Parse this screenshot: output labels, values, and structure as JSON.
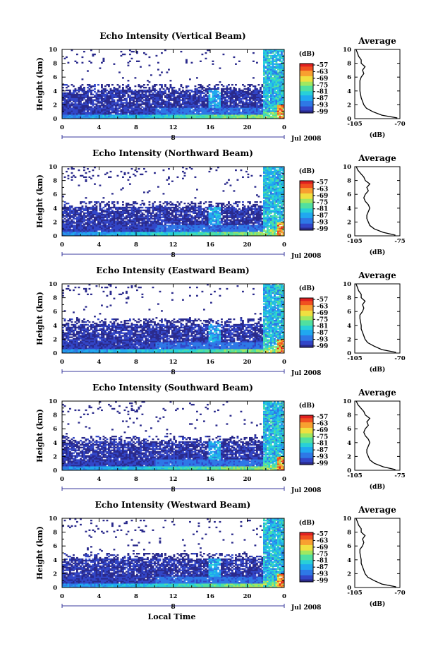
{
  "chart_data": [
    {
      "type": "heatmap",
      "title": "Echo Intensity (Vertical Beam)",
      "ylabel": "Height (km)",
      "xlabel": "",
      "x_ticks": [
        "0",
        "4",
        "8",
        "12",
        "16",
        "20",
        "0"
      ],
      "y_ticks": [
        "0",
        "2",
        "4",
        "6",
        "8",
        "10"
      ],
      "xlim": [
        0,
        24
      ],
      "ylim": [
        0,
        10
      ],
      "date_marker": "8",
      "month_label": "Jul 2008",
      "colorbar": {
        "unit": "(dB)",
        "ticks": [
          "-57",
          "-63",
          "-69",
          "-75",
          "-81",
          "-87",
          "-93",
          "-99"
        ]
      },
      "average_profile": {
        "title": "Average",
        "xlabel": "(dB)",
        "x_ticks": [
          "-105",
          "-70"
        ],
        "xlim": [
          -105,
          -70
        ],
        "height": [
          0.1,
          0.5,
          1,
          1.5,
          2,
          2.5,
          3,
          3.5,
          4,
          4.5,
          5,
          5.5,
          6,
          6.5,
          7,
          7.5,
          8,
          8.5,
          9,
          9.5,
          10
        ],
        "value": [
          -72,
          -84,
          -91,
          -96,
          -98,
          -99,
          -100,
          -100.5,
          -101,
          -101,
          -101,
          -101,
          -100,
          -98,
          -99,
          -97,
          -100,
          -100,
          -102,
          -103,
          -104
        ]
      }
    },
    {
      "type": "heatmap",
      "title": "Echo Intensity (Northward Beam)",
      "ylabel": "Height (km)",
      "xlabel": "",
      "x_ticks": [
        "0",
        "4",
        "8",
        "12",
        "16",
        "20",
        "0"
      ],
      "y_ticks": [
        "0",
        "2",
        "4",
        "6",
        "8",
        "10"
      ],
      "xlim": [
        0,
        24
      ],
      "ylim": [
        0,
        10
      ],
      "date_marker": "8",
      "month_label": "Jul 2008",
      "colorbar": {
        "unit": "(dB)",
        "ticks": [
          "-57",
          "-63",
          "-69",
          "-75",
          "-81",
          "-87",
          "-93",
          "-99"
        ]
      },
      "average_profile": {
        "title": "Average",
        "xlabel": "(dB)",
        "x_ticks": [
          "-105",
          "-75"
        ],
        "xlim": [
          -105,
          -75
        ],
        "height": [
          0.1,
          0.5,
          1,
          1.5,
          2,
          2.5,
          3,
          3.5,
          4,
          4.5,
          5,
          5.5,
          6,
          6.5,
          7,
          7.5,
          8,
          8.5,
          9,
          9.5,
          10
        ],
        "value": [
          -78,
          -86,
          -92,
          -95,
          -96,
          -97,
          -97,
          -96,
          -95,
          -96,
          -98,
          -99,
          -98,
          -96,
          -97,
          -95,
          -98,
          -99,
          -101,
          -103,
          -104
        ]
      }
    },
    {
      "type": "heatmap",
      "title": "Echo Intensity (Eastward Beam)",
      "ylabel": "Height (km)",
      "xlabel": "",
      "x_ticks": [
        "0",
        "4",
        "8",
        "12",
        "16",
        "20",
        "0"
      ],
      "y_ticks": [
        "0",
        "2",
        "4",
        "6",
        "8",
        "10"
      ],
      "xlim": [
        0,
        24
      ],
      "ylim": [
        0,
        10
      ],
      "date_marker": "8",
      "month_label": "Jul 2008",
      "colorbar": {
        "unit": "(dB)",
        "ticks": [
          "-57",
          "-63",
          "-69",
          "-75",
          "-81",
          "-87",
          "-93",
          "-99"
        ]
      },
      "average_profile": {
        "title": "Average",
        "xlabel": "(dB)",
        "x_ticks": [
          "-105",
          "-70"
        ],
        "xlim": [
          -105,
          -70
        ],
        "height": [
          0.1,
          0.5,
          1,
          1.5,
          2,
          2.5,
          3,
          3.5,
          4,
          4.5,
          5,
          5.5,
          6,
          6.5,
          7,
          7.5,
          8,
          8.5,
          9,
          9.5,
          10
        ],
        "value": [
          -73,
          -84,
          -90,
          -95,
          -97,
          -98,
          -99,
          -100,
          -100,
          -100.5,
          -101,
          -101,
          -99,
          -98,
          -99,
          -97,
          -100,
          -100,
          -102,
          -103,
          -104
        ]
      }
    },
    {
      "type": "heatmap",
      "title": "Echo Intensity (Southward Beam)",
      "ylabel": "Height (km)",
      "xlabel": "",
      "x_ticks": [
        "0",
        "4",
        "8",
        "12",
        "16",
        "20",
        "0"
      ],
      "y_ticks": [
        "0",
        "2",
        "4",
        "6",
        "8",
        "10"
      ],
      "xlim": [
        0,
        24
      ],
      "ylim": [
        0,
        10
      ],
      "date_marker": "8",
      "month_label": "Jul 2008",
      "colorbar": {
        "unit": "(dB)",
        "ticks": [
          "-57",
          "-63",
          "-69",
          "-75",
          "-81",
          "-87",
          "-93",
          "-99"
        ]
      },
      "average_profile": {
        "title": "Average",
        "xlabel": "(dB)",
        "x_ticks": [
          "-105",
          "-75"
        ],
        "xlim": [
          -105,
          -75
        ],
        "height": [
          0.1,
          0.5,
          1,
          1.5,
          2,
          2.5,
          3,
          3.5,
          4,
          4.5,
          5,
          5.5,
          6,
          6.5,
          7,
          7.5,
          8,
          8.5,
          9,
          9.5,
          10
        ],
        "value": [
          -78,
          -86,
          -92,
          -95,
          -96,
          -97,
          -97,
          -96,
          -95,
          -96,
          -98,
          -99,
          -98,
          -96,
          -97,
          -95,
          -98,
          -99,
          -101,
          -103,
          -104
        ]
      }
    },
    {
      "type": "heatmap",
      "title": "Echo Intensity (Westward Beam)",
      "ylabel": "Height (km)",
      "xlabel": "Local Time",
      "x_ticks": [
        "0",
        "4",
        "8",
        "12",
        "16",
        "20",
        "0"
      ],
      "y_ticks": [
        "0",
        "2",
        "4",
        "6",
        "8",
        "10"
      ],
      "xlim": [
        0,
        24
      ],
      "ylim": [
        0,
        10
      ],
      "date_marker": "8",
      "month_label": "Jul 2008",
      "colorbar": {
        "unit": "(dB)",
        "ticks": [
          "-57",
          "-63",
          "-69",
          "-75",
          "-81",
          "-87",
          "-93",
          "-99"
        ]
      },
      "average_profile": {
        "title": "Average",
        "xlabel": "(dB)",
        "x_ticks": [
          "-105",
          "-70"
        ],
        "xlim": [
          -105,
          -70
        ],
        "height": [
          0.1,
          0.5,
          1,
          1.5,
          2,
          2.5,
          3,
          3.5,
          4,
          4.5,
          5,
          5.5,
          6,
          6.5,
          7,
          7.5,
          8,
          8.5,
          9,
          9.5,
          10
        ],
        "value": [
          -73,
          -84,
          -90,
          -95,
          -97,
          -98,
          -99,
          -100,
          -100,
          -100.5,
          -101,
          -101,
          -99,
          -98,
          -99,
          -97,
          -100,
          -100,
          -102,
          -103,
          -104
        ]
      }
    }
  ],
  "colors": {
    "scale": [
      "#2a2a8c",
      "#3246c8",
      "#2e78e6",
      "#20a8f0",
      "#28d0d8",
      "#50e0a0",
      "#a0e860",
      "#f0e040",
      "#f8a030",
      "#f05020",
      "#e02020"
    ]
  }
}
